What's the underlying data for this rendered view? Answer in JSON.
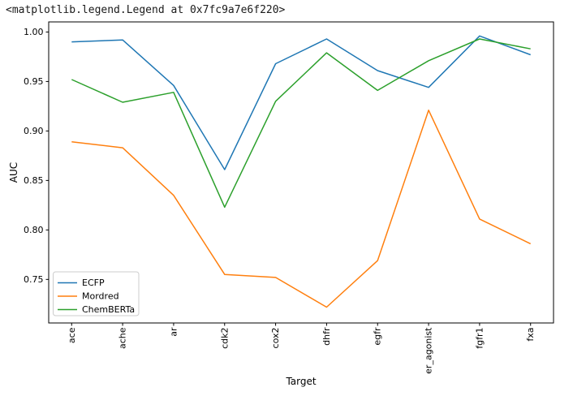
{
  "output_text": "<matplotlib.legend.Legend at 0x7fc9a7e6f220>",
  "chart_data": {
    "type": "line",
    "title": "",
    "xlabel": "Target",
    "ylabel": "AUC",
    "categories": [
      "ace",
      "ache",
      "ar",
      "cdk2",
      "cox2",
      "dhfr",
      "egfr",
      "er_agonist",
      "fgfr1",
      "fxa"
    ],
    "series": [
      {
        "name": "ECFP",
        "color": "#1f77b4",
        "values": [
          0.99,
          0.992,
          0.946,
          0.861,
          0.968,
          0.993,
          0.961,
          0.944,
          0.996,
          0.977
        ]
      },
      {
        "name": "Mordred",
        "color": "#ff7f0e",
        "values": [
          0.889,
          0.883,
          0.835,
          0.755,
          0.752,
          0.722,
          0.769,
          0.921,
          0.811,
          0.786
        ]
      },
      {
        "name": "ChemBERTa",
        "color": "#2ca02c",
        "values": [
          0.952,
          0.929,
          0.939,
          0.823,
          0.93,
          0.979,
          0.941,
          0.971,
          0.993,
          0.983
        ]
      }
    ],
    "yticks": {
      "values": [
        0.75,
        0.8,
        0.85,
        0.9,
        0.95,
        1.0
      ],
      "labels": [
        "0.75",
        "0.80",
        "0.85",
        "0.90",
        "0.95",
        "1.00"
      ]
    },
    "ylim": [
      0.706,
      1.0102
    ],
    "xlim": [
      -0.45,
      9.45
    ],
    "xtick_rotation": 90,
    "grid": false,
    "legend": {
      "position": "lower left",
      "entries": [
        "ECFP",
        "Mordred",
        "ChemBERTa"
      ]
    },
    "frame_color": "#000000",
    "legend_border_color": "#cccccc"
  }
}
